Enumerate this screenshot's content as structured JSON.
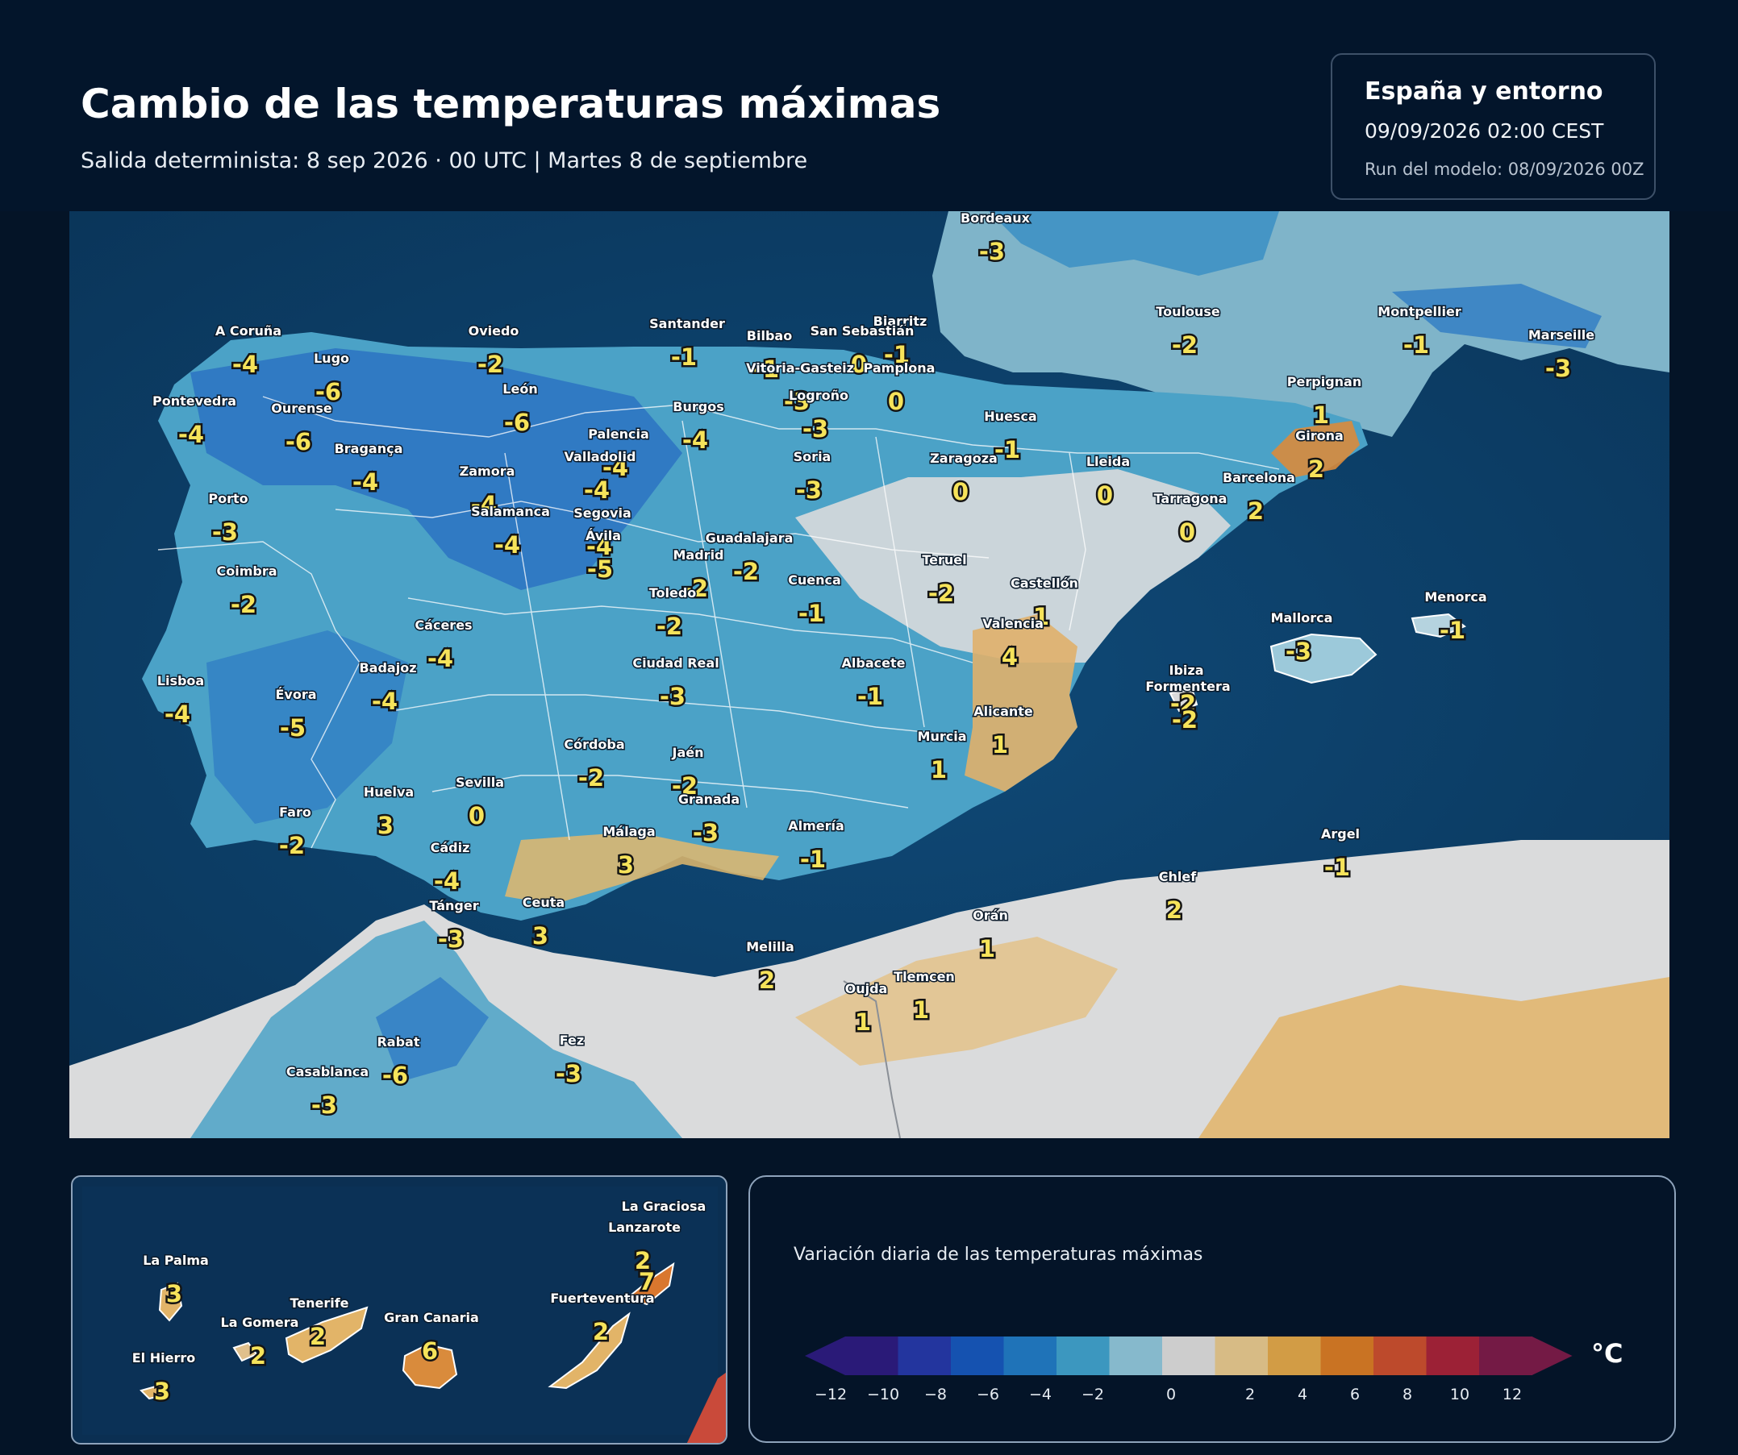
{
  "header": {
    "title": "Cambio de las temperaturas máximas",
    "subtitle": "Salida determinista: 8 sep 2026 · 00 UTC  |  Martes 8 de septiembre"
  },
  "info_box": {
    "region": "España y entorno",
    "valid_time": "09/09/2026  02:00 CEST",
    "run": "Run del modelo: 08/09/2026 00Z"
  },
  "map": {
    "colors": {
      "sea": "#0c3d66",
      "land_cold": "#4aa3c8",
      "land_cool": "#2f7cc4",
      "land_neutral": "#dcdcdc",
      "land_warm": "#e2b468",
      "borders": "#ffffff"
    },
    "cities": [
      {
        "name": "Bordeaux",
        "value": "-3"
      },
      {
        "name": "Toulouse",
        "value": "-2"
      },
      {
        "name": "Montpellier",
        "value": "-1"
      },
      {
        "name": "Marseille",
        "value": "-3"
      },
      {
        "name": "Perpignan",
        "value": "1"
      },
      {
        "name": "Biarritz",
        "value": "-1"
      },
      {
        "name": "A Coruña",
        "value": "-4"
      },
      {
        "name": "Oviedo",
        "value": "-2"
      },
      {
        "name": "Santander",
        "value": "-1"
      },
      {
        "name": "Bilbao",
        "value": "-1"
      },
      {
        "name": "San Sebastián",
        "value": "0"
      },
      {
        "name": "Vitoria-Gasteiz",
        "value": "-3"
      },
      {
        "name": "Pamplona",
        "value": "0"
      },
      {
        "name": "Lugo",
        "value": "-6"
      },
      {
        "name": "León",
        "value": "-6"
      },
      {
        "name": "Pontevedra",
        "value": "-4"
      },
      {
        "name": "Ourense",
        "value": "-6"
      },
      {
        "name": "Burgos",
        "value": "-4"
      },
      {
        "name": "Logroño",
        "value": "-3"
      },
      {
        "name": "Huesca",
        "value": "-1"
      },
      {
        "name": "Girona",
        "value": "2"
      },
      {
        "name": "Palencia",
        "value": "-4"
      },
      {
        "name": "Soria",
        "value": "-3"
      },
      {
        "name": "Bragança",
        "value": "-4"
      },
      {
        "name": "Valladolid",
        "value": "-4"
      },
      {
        "name": "Zaragoza",
        "value": "0"
      },
      {
        "name": "Lleida",
        "value": "0"
      },
      {
        "name": "Barcelona",
        "value": "2"
      },
      {
        "name": "Zamora",
        "value": "-4"
      },
      {
        "name": "Porto",
        "value": "-3"
      },
      {
        "name": "Tarragona",
        "value": "0"
      },
      {
        "name": "Salamanca",
        "value": "-4"
      },
      {
        "name": "Segovia",
        "value": "-4"
      },
      {
        "name": "Ávila",
        "value": "-5"
      },
      {
        "name": "Guadalajara",
        "value": "-2"
      },
      {
        "name": "Madrid",
        "value": "-2"
      },
      {
        "name": "Teruel",
        "value": "-2"
      },
      {
        "name": "Coimbra",
        "value": "-2"
      },
      {
        "name": "Cuenca",
        "value": "-1"
      },
      {
        "name": "Castellón",
        "value": "1"
      },
      {
        "name": "Toledo",
        "value": "-2"
      },
      {
        "name": "Menorca",
        "value": "-1"
      },
      {
        "name": "Cáceres",
        "value": "-4"
      },
      {
        "name": "Valencia",
        "value": "4"
      },
      {
        "name": "Mallorca",
        "value": "-3"
      },
      {
        "name": "Ciudad Real",
        "value": "-3"
      },
      {
        "name": "Albacete",
        "value": "-1"
      },
      {
        "name": "Badajoz",
        "value": "-4"
      },
      {
        "name": "Ibiza",
        "value": "-2"
      },
      {
        "name": "Formentera",
        "value": "-2"
      },
      {
        "name": "Lisboa",
        "value": "-4"
      },
      {
        "name": "Évora",
        "value": "-5"
      },
      {
        "name": "Alicante",
        "value": "1"
      },
      {
        "name": "Murcia",
        "value": "1"
      },
      {
        "name": "Córdoba",
        "value": "-2"
      },
      {
        "name": "Jaén",
        "value": "-2"
      },
      {
        "name": "Sevilla",
        "value": "0"
      },
      {
        "name": "Huelva",
        "value": "3"
      },
      {
        "name": "Granada",
        "value": "-3"
      },
      {
        "name": "Faro",
        "value": "-2"
      },
      {
        "name": "Almería",
        "value": "-1"
      },
      {
        "name": "Málaga",
        "value": "3"
      },
      {
        "name": "Cádiz",
        "value": "-4"
      },
      {
        "name": "Argel",
        "value": "-1"
      },
      {
        "name": "Chlef",
        "value": "2"
      },
      {
        "name": "Ceuta",
        "value": "3"
      },
      {
        "name": "Tánger",
        "value": "-3"
      },
      {
        "name": "Orán",
        "value": "1"
      },
      {
        "name": "Melilla",
        "value": "2"
      },
      {
        "name": "Tlemcen",
        "value": "1"
      },
      {
        "name": "Oujda",
        "value": "1"
      },
      {
        "name": "Rabat",
        "value": "-6"
      },
      {
        "name": "Fez",
        "value": "-3"
      },
      {
        "name": "Casablanca",
        "value": "-3"
      }
    ]
  },
  "canarias": {
    "islands": [
      {
        "name": "La Graciosa",
        "value": ""
      },
      {
        "name": "Lanzarote",
        "value": "2"
      },
      {
        "name": "La Palma",
        "value": "3"
      },
      {
        "name": "Tenerife",
        "value": "2"
      },
      {
        "name": "La Gomera",
        "value": "2"
      },
      {
        "name": "Gran Canaria",
        "value": "6"
      },
      {
        "name": "Fuerteventura",
        "value": "2"
      },
      {
        "name": "El Hierro",
        "value": "3"
      },
      {
        "name": "Fuerteventura-north",
        "value": "7"
      }
    ]
  },
  "legend": {
    "title": "Variación diaria de las temperaturas máximas",
    "unit": "°C",
    "ticks": [
      "−12",
      "−10",
      "−8",
      "−6",
      "−4",
      "−2",
      "0",
      "2",
      "4",
      "6",
      "8",
      "10",
      "12"
    ],
    "colors": [
      "#2a1a78",
      "#23359e",
      "#1552b0",
      "#1f73b8",
      "#3c97bf",
      "#86b9cc",
      "#cdcdcd",
      "#d7bb85",
      "#d29c45",
      "#c97323",
      "#bd4a2c",
      "#9c2136",
      "#741a45"
    ]
  }
}
